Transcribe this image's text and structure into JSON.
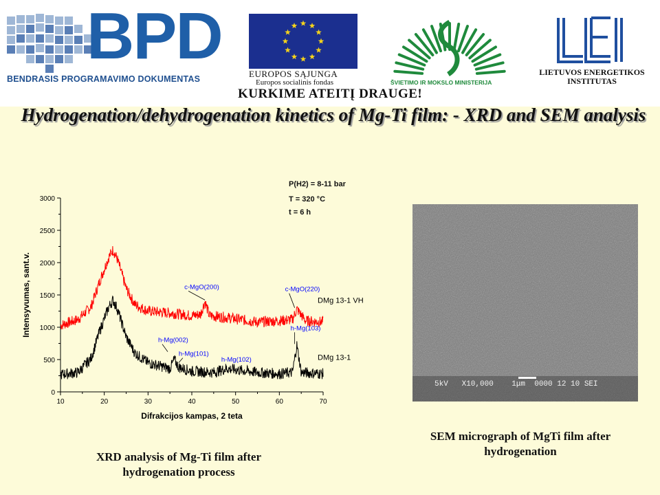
{
  "header": {
    "bpd": {
      "letters": "BPD",
      "tagline": "BENDRASIS PROGRAMAVIMO DOKUMENTAS"
    },
    "eu": {
      "line1": "EUROPOS SĄJUNGA",
      "line2": "Europos socialinis fondas"
    },
    "ministry": {
      "text": "ŠVIETIMO IR MOKSLO MINISTERIJA"
    },
    "lei": {
      "line1": "LIETUVOS ENERGETIKOS",
      "line2": "INSTITUTAS"
    },
    "slogan": "KURKIME ATEITĮ DRAUGE!",
    "colors": {
      "bpd_blue": "#1f5fa8",
      "eu_blue": "#1b2f8f",
      "eu_star": "#f4d21c",
      "ministry_green": "#1f8a3c"
    }
  },
  "title": "Hydrogenation/dehydrogenation kinetics of Mg-Ti film: - XRD and SEM analysis",
  "xrd": {
    "conditions": {
      "pressure": "P(H2) = 8-11 bar",
      "temperature": "T = 320 °C",
      "time": "t = 6 h"
    },
    "caption_line1": "XRD analysis of  Mg-Ti film after",
    "caption_line2": "hydrogenation process"
  },
  "sem": {
    "info_bar": "5kV   X10,000    1μm  0000 12 10 SEI",
    "caption_line1": "SEM micrograph of MgTi film after",
    "caption_line2": "hydrogenation"
  },
  "chart_data": {
    "type": "line",
    "xlabel": "Difrakcijos kampas, 2 teta",
    "ylabel": "Intensyvumas, sant.v.",
    "xlim": [
      10,
      70
    ],
    "ylim": [
      0,
      3000
    ],
    "xticks": [
      10,
      20,
      30,
      40,
      50,
      60,
      70
    ],
    "yticks": [
      0,
      500,
      1000,
      1500,
      2000,
      2500,
      3000
    ],
    "grid": false,
    "series": [
      {
        "name": "DMg 13-1 VH",
        "color": "#ff0000",
        "x": [
          10,
          14,
          17,
          19,
          21,
          22,
          23,
          25,
          27,
          30,
          35,
          40,
          42,
          43,
          44,
          48,
          55,
          60,
          63,
          64,
          66,
          70
        ],
        "y": [
          1030,
          1120,
          1320,
          1720,
          2080,
          2200,
          2050,
          1600,
          1350,
          1250,
          1220,
          1180,
          1200,
          1400,
          1180,
          1150,
          1080,
          1100,
          1120,
          1280,
          1100,
          1080
        ]
      },
      {
        "name": "DMg 13-1",
        "color": "#000000",
        "x": [
          10,
          14,
          17,
          19,
          21,
          22,
          23,
          25,
          27,
          30,
          35,
          36,
          37,
          40,
          45,
          48,
          55,
          60,
          63,
          64,
          65,
          70
        ],
        "y": [
          270,
          300,
          520,
          950,
          1310,
          1420,
          1280,
          850,
          600,
          450,
          360,
          500,
          380,
          320,
          300,
          360,
          300,
          280,
          300,
          720,
          300,
          280
        ]
      }
    ],
    "annotations": [
      {
        "text": "c-MgO(200)",
        "x": 43,
        "y": 1400,
        "color": "#0000ff"
      },
      {
        "text": "c-MgO(220)",
        "x": 63.5,
        "y": 1280,
        "color": "#0000ff"
      },
      {
        "text": "h-Mg(002)",
        "x": 34.5,
        "y": 600,
        "color": "#0000ff"
      },
      {
        "text": "h-Mg(101)",
        "x": 37,
        "y": 430,
        "color": "#0000ff"
      },
      {
        "text": "h-Mg(102)",
        "x": 48,
        "y": 360,
        "color": "#0000ff"
      },
      {
        "text": "h-Mg(103)",
        "x": 63.5,
        "y": 720,
        "color": "#0000ff"
      }
    ]
  }
}
